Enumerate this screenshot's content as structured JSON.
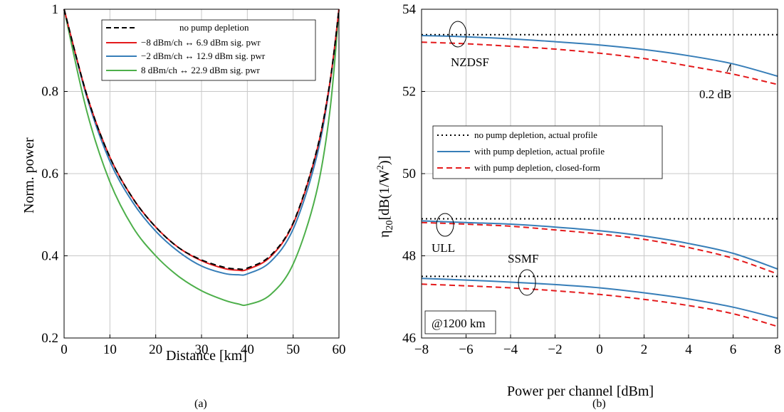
{
  "captions": {
    "a": "(a)",
    "b": "(b)"
  },
  "chart_data": [
    {
      "type": "line",
      "xlabel": "Distance [km]",
      "ylabel": "Norm. power",
      "xlim": [
        0,
        60
      ],
      "ylim": [
        0.2,
        1
      ],
      "xticks": [
        0,
        10,
        20,
        30,
        40,
        50,
        60
      ],
      "yticks": [
        0.2,
        0.4,
        0.6,
        0.8,
        1
      ],
      "grid": true,
      "legend_position": "top-right",
      "series": [
        {
          "name": "no pump depletion",
          "color": "#000000",
          "dash": "dashed",
          "points": [
            [
              0,
              1.0
            ],
            [
              5,
              0.79
            ],
            [
              10,
              0.64
            ],
            [
              15,
              0.54
            ],
            [
              20,
              0.47
            ],
            [
              25,
              0.42
            ],
            [
              30,
              0.39
            ],
            [
              35,
              0.372
            ],
            [
              38,
              0.368
            ],
            [
              40,
              0.37
            ],
            [
              45,
              0.4
            ],
            [
              50,
              0.48
            ],
            [
              55,
              0.65
            ],
            [
              58,
              0.82
            ],
            [
              60,
              1.0
            ]
          ]
        },
        {
          "name": "−8 dBm/ch ↔ 6.9 dBm sig. pwr",
          "color": "#e41a1c",
          "dash": "solid",
          "points": [
            [
              0,
              1.0
            ],
            [
              5,
              0.79
            ],
            [
              10,
              0.64
            ],
            [
              15,
              0.54
            ],
            [
              20,
              0.47
            ],
            [
              25,
              0.42
            ],
            [
              30,
              0.388
            ],
            [
              35,
              0.369
            ],
            [
              38,
              0.365
            ],
            [
              40,
              0.367
            ],
            [
              45,
              0.397
            ],
            [
              50,
              0.478
            ],
            [
              55,
              0.648
            ],
            [
              58,
              0.82
            ],
            [
              60,
              1.0
            ]
          ]
        },
        {
          "name": "−2 dBm/ch ↔ 12.9 dBm sig. pwr",
          "color": "#377eb8",
          "dash": "solid",
          "points": [
            [
              0,
              1.0
            ],
            [
              5,
              0.785
            ],
            [
              10,
              0.63
            ],
            [
              15,
              0.53
            ],
            [
              20,
              0.46
            ],
            [
              25,
              0.41
            ],
            [
              30,
              0.375
            ],
            [
              35,
              0.357
            ],
            [
              38,
              0.354
            ],
            [
              40,
              0.356
            ],
            [
              45,
              0.385
            ],
            [
              50,
              0.465
            ],
            [
              55,
              0.635
            ],
            [
              58,
              0.815
            ],
            [
              60,
              1.0
            ]
          ]
        },
        {
          "name": "8 dBm/ch ↔ 22.9 dBm sig. pwr",
          "color": "#4daf4a",
          "dash": "solid",
          "points": [
            [
              0,
              1.0
            ],
            [
              5,
              0.75
            ],
            [
              10,
              0.58
            ],
            [
              15,
              0.47
            ],
            [
              20,
              0.4
            ],
            [
              25,
              0.35
            ],
            [
              30,
              0.315
            ],
            [
              35,
              0.292
            ],
            [
              38,
              0.283
            ],
            [
              40,
              0.281
            ],
            [
              45,
              0.305
            ],
            [
              50,
              0.38
            ],
            [
              55,
              0.55
            ],
            [
              58,
              0.75
            ],
            [
              60,
              1.0
            ]
          ]
        }
      ]
    },
    {
      "type": "line",
      "xlabel": "Power per channel [dBm]",
      "ylabel": "η20[dB(1/W²)]",
      "xlim": [
        -8,
        8
      ],
      "ylim": [
        46,
        54
      ],
      "xticks": [
        -8,
        -6,
        -4,
        -2,
        0,
        2,
        4,
        6,
        8
      ],
      "yticks": [
        46,
        48,
        50,
        52,
        54
      ],
      "grid": true,
      "legend_position": "center",
      "legend": [
        {
          "name": "no pump depletion, actual profile",
          "color": "#000000",
          "dash": "dotted"
        },
        {
          "name": "with pump depletion, actual profile",
          "color": "#377eb8",
          "dash": "solid"
        },
        {
          "name": "with pump depletion, closed-form",
          "color": "#e41a1c",
          "dash": "dashed"
        }
      ],
      "fibers": [
        {
          "name": "NZDSF",
          "no_depletion": [
            [
              -8,
              53.38
            ],
            [
              8,
              53.38
            ]
          ],
          "actual": [
            [
              -8,
              53.36
            ],
            [
              -6,
              53.33
            ],
            [
              -4,
              53.28
            ],
            [
              -2,
              53.21
            ],
            [
              0,
              53.13
            ],
            [
              2,
              53.02
            ],
            [
              4,
              52.87
            ],
            [
              6,
              52.67
            ],
            [
              8,
              52.37
            ]
          ],
          "closed_form": [
            [
              -8,
              53.2
            ],
            [
              -6,
              53.16
            ],
            [
              -4,
              53.1
            ],
            [
              -2,
              53.03
            ],
            [
              0,
              52.93
            ],
            [
              2,
              52.8
            ],
            [
              4,
              52.62
            ],
            [
              6,
              52.42
            ],
            [
              8,
              52.17
            ]
          ]
        },
        {
          "name": "ULL",
          "no_depletion": [
            [
              -8,
              48.9
            ],
            [
              8,
              48.9
            ]
          ],
          "actual": [
            [
              -8,
              48.85
            ],
            [
              -6,
              48.81
            ],
            [
              -4,
              48.77
            ],
            [
              -2,
              48.7
            ],
            [
              0,
              48.61
            ],
            [
              2,
              48.48
            ],
            [
              4,
              48.3
            ],
            [
              6,
              48.06
            ],
            [
              8,
              47.68
            ]
          ],
          "closed_form": [
            [
              -8,
              48.81
            ],
            [
              -6,
              48.77
            ],
            [
              -4,
              48.72
            ],
            [
              -2,
              48.63
            ],
            [
              0,
              48.53
            ],
            [
              2,
              48.4
            ],
            [
              4,
              48.2
            ],
            [
              6,
              47.94
            ],
            [
              8,
              47.56
            ]
          ]
        },
        {
          "name": "SSMF",
          "no_depletion": [
            [
              -8,
              47.5
            ],
            [
              8,
              47.5
            ]
          ],
          "actual": [
            [
              -8,
              47.45
            ],
            [
              -6,
              47.41
            ],
            [
              -4,
              47.36
            ],
            [
              -2,
              47.3
            ],
            [
              0,
              47.22
            ],
            [
              2,
              47.1
            ],
            [
              4,
              46.95
            ],
            [
              6,
              46.75
            ],
            [
              8,
              46.48
            ]
          ],
          "closed_form": [
            [
              -8,
              47.31
            ],
            [
              -6,
              47.27
            ],
            [
              -4,
              47.22
            ],
            [
              -2,
              47.15
            ],
            [
              0,
              47.06
            ],
            [
              2,
              46.94
            ],
            [
              4,
              46.79
            ],
            [
              6,
              46.59
            ],
            [
              8,
              46.28
            ]
          ]
        }
      ],
      "annotations": {
        "nzdsf": "NZDSF",
        "ull": "ULL",
        "ssmf": "SSMF",
        "diff": "0.2 dB",
        "distance": "@1200 km"
      }
    }
  ]
}
